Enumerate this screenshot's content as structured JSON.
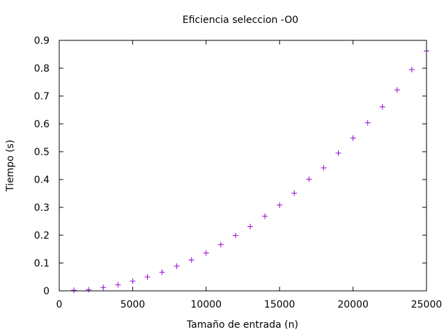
{
  "chart_data": {
    "type": "scatter",
    "title": "Eficiencia seleccion -O0",
    "xlabel": "Tamaño de entrada (n)",
    "ylabel": "Tiempo (s)",
    "xlim": [
      0,
      25000
    ],
    "ylim": [
      0,
      0.9
    ],
    "grid": false,
    "marker": "+",
    "marker_color": "#9400d3",
    "x_ticks": [
      0,
      5000,
      10000,
      15000,
      20000,
      25000
    ],
    "x_tick_labels": [
      "0",
      "5000",
      "10000",
      "15000",
      "20000",
      "25000"
    ],
    "y_ticks": [
      0,
      0.1,
      0.2,
      0.3,
      0.4,
      0.5,
      0.6,
      0.7,
      0.8,
      0.9
    ],
    "y_tick_labels": [
      "0",
      "0.1",
      "0.2",
      "0.3",
      "0.4",
      "0.5",
      "0.6",
      "0.7",
      "0.8",
      "0.9"
    ],
    "x": [
      1000,
      2000,
      3000,
      4000,
      5000,
      6000,
      7000,
      8000,
      9000,
      10000,
      11000,
      12000,
      13000,
      14000,
      15000,
      16000,
      17000,
      18000,
      19000,
      20000,
      21000,
      22000,
      23000,
      24000,
      25000
    ],
    "y": [
      0.002,
      0.004,
      0.012,
      0.022,
      0.035,
      0.05,
      0.067,
      0.089,
      0.111,
      0.136,
      0.166,
      0.199,
      0.231,
      0.268,
      0.308,
      0.351,
      0.401,
      0.442,
      0.495,
      0.549,
      0.604,
      0.661,
      0.722,
      0.795,
      0.862
    ]
  }
}
